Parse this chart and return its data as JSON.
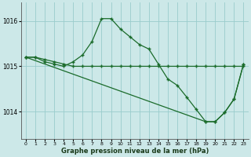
{
  "title": "Graphe pression niveau de la mer (hPa)",
  "bg_color": "#cce8e8",
  "grid_color": "#99cccc",
  "line_color": "#1a6b2a",
  "xlim": [
    -0.5,
    23.5
  ],
  "ylim": [
    1013.4,
    1016.4
  ],
  "yticks": [
    1014,
    1015,
    1016
  ],
  "xticks": [
    0,
    1,
    2,
    3,
    4,
    5,
    6,
    7,
    8,
    9,
    10,
    11,
    12,
    13,
    14,
    15,
    16,
    17,
    18,
    19,
    20,
    21,
    22,
    23
  ],
  "series1_x": [
    0,
    1,
    2,
    3,
    4,
    5,
    6,
    7,
    8,
    9,
    10,
    11,
    12,
    13,
    14,
    15,
    16,
    17,
    18,
    19,
    20,
    21,
    22,
    23
  ],
  "series1_y": [
    1015.2,
    1015.2,
    1015.15,
    1015.1,
    1015.05,
    1015.0,
    1015.0,
    1015.0,
    1015.0,
    1015.0,
    1015.0,
    1015.0,
    1015.0,
    1015.0,
    1015.0,
    1015.0,
    1015.0,
    1015.0,
    1015.0,
    1015.0,
    1015.0,
    1015.0,
    1015.0,
    1015.0
  ],
  "series2_x": [
    0,
    1,
    2,
    3,
    4,
    5,
    6,
    7,
    8,
    9,
    10,
    11,
    12,
    13,
    14,
    15,
    16,
    17,
    18,
    19,
    20,
    21,
    22,
    23
  ],
  "series2_y": [
    1015.2,
    1015.2,
    1015.1,
    1015.05,
    1015.0,
    1015.1,
    1015.25,
    1015.55,
    1016.05,
    1016.05,
    1015.82,
    1015.65,
    1015.48,
    1015.38,
    1015.05,
    1014.72,
    1014.58,
    1014.32,
    1014.05,
    1013.78,
    1013.78,
    1013.98,
    1014.28,
    1015.05
  ],
  "series3_x": [
    0,
    19,
    20,
    21,
    22,
    23
  ],
  "series3_y": [
    1015.2,
    1013.78,
    1013.78,
    1013.98,
    1014.28,
    1015.05
  ]
}
